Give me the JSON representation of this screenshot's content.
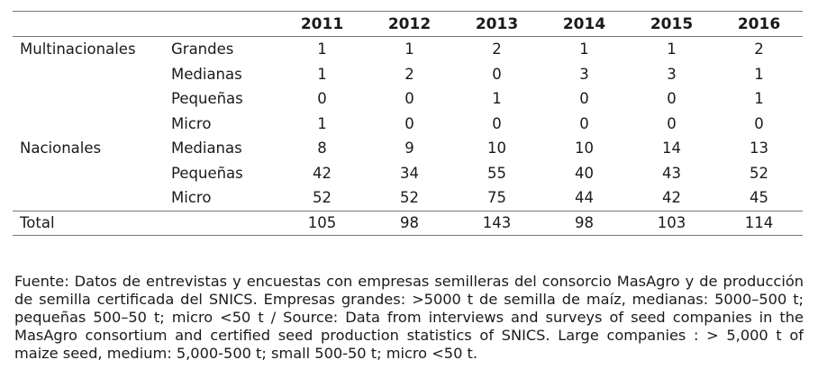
{
  "table": {
    "years": [
      "2011",
      "2012",
      "2013",
      "2014",
      "2015",
      "2016"
    ],
    "rows": [
      {
        "group": "Multinacionales",
        "size": "Grandes",
        "values": [
          "1",
          "1",
          "2",
          "1",
          "1",
          "2"
        ]
      },
      {
        "group": "",
        "size": "Medianas",
        "values": [
          "1",
          "2",
          "0",
          "3",
          "3",
          "1"
        ]
      },
      {
        "group": "",
        "size": "Pequeñas",
        "values": [
          "0",
          "0",
          "1",
          "0",
          "0",
          "1"
        ]
      },
      {
        "group": "",
        "size": "Micro",
        "values": [
          "1",
          "0",
          "0",
          "0",
          "0",
          "0"
        ]
      },
      {
        "group": "Nacionales",
        "size": "Medianas",
        "values": [
          "8",
          "9",
          "10",
          "10",
          "14",
          "13"
        ]
      },
      {
        "group": "",
        "size": "Pequeñas",
        "values": [
          "42",
          "34",
          "55",
          "40",
          "43",
          "52"
        ]
      },
      {
        "group": "",
        "size": "Micro",
        "values": [
          "52",
          "52",
          "75",
          "44",
          "42",
          "45"
        ]
      }
    ],
    "total": {
      "label": "Total",
      "values": [
        "105",
        "98",
        "143",
        "98",
        "103",
        "114"
      ]
    }
  },
  "note": "Fuente: Datos de entrevistas y encuestas con empresas semilleras del consorcio MasAgro y de producción de semilla certificada del SNICS. Empresas grandes: >5000 t de semilla de maíz, medianas: 5000–500 t; pequeñas 500–50 t; micro <50 t / Source: Data from interviews and surveys of seed companies in the MasAgro consortium and certified seed production statistics of SNICS. Large companies : > 5,000 t of maize seed, medium: 5,000-500 t; small 500-50 t; micro <50 t."
}
